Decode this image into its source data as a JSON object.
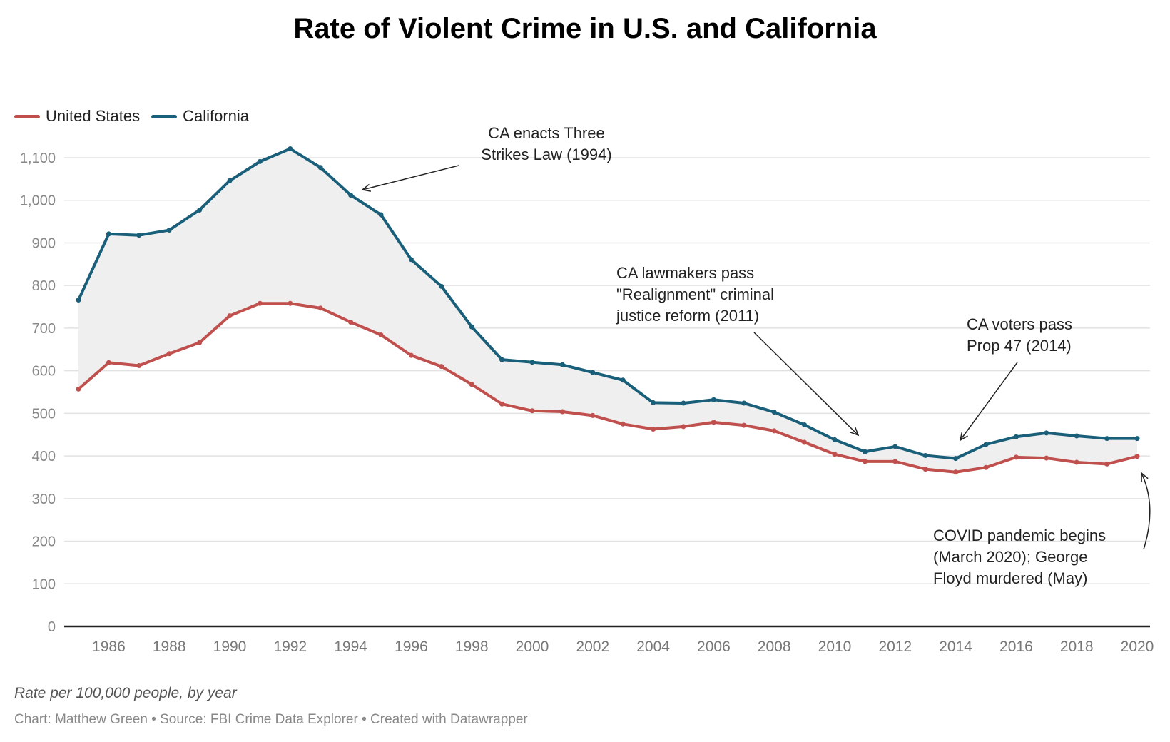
{
  "chart_data": {
    "type": "line",
    "title": "Rate of Violent Crime in U.S. and California",
    "subtitle_note": "Rate per 100,000 people, by year",
    "source": "Chart: Matthew Green • Source: FBI Crime Data Explorer • Created with Datawrapper",
    "ylim": [
      0,
      1100
    ],
    "yticks": [
      0,
      100,
      200,
      300,
      400,
      500,
      600,
      700,
      800,
      900,
      1000,
      1100
    ],
    "ytick_labels": [
      "0",
      "100",
      "200",
      "300",
      "400",
      "500",
      "600",
      "700",
      "800",
      "900",
      "1,000",
      "1,100"
    ],
    "xticks": [
      1986,
      1988,
      1990,
      1992,
      1994,
      1996,
      1998,
      2000,
      2002,
      2004,
      2006,
      2008,
      2010,
      2012,
      2014,
      2016,
      2018,
      2020
    ],
    "x": [
      1985,
      1986,
      1987,
      1988,
      1989,
      1990,
      1991,
      1992,
      1993,
      1994,
      1995,
      1996,
      1997,
      1998,
      1999,
      2000,
      2001,
      2002,
      2003,
      2004,
      2005,
      2006,
      2007,
      2008,
      2009,
      2010,
      2011,
      2012,
      2013,
      2014,
      2015,
      2016,
      2017,
      2018,
      2019,
      2020
    ],
    "series": [
      {
        "name": "United States",
        "color": "#c0504d",
        "values": [
          557,
          619,
          612,
          640,
          666,
          729,
          758,
          758,
          747,
          714,
          684,
          636,
          610,
          568,
          522,
          506,
          504,
          495,
          475,
          463,
          469,
          479,
          472,
          459,
          432,
          404,
          387,
          387,
          369,
          362,
          373,
          397,
          395,
          385,
          381,
          399
        ]
      },
      {
        "name": "California",
        "color": "#1a5f7a",
        "values": [
          766,
          921,
          918,
          930,
          977,
          1046,
          1091,
          1121,
          1077,
          1012,
          966,
          861,
          798,
          703,
          626,
          620,
          614,
          596,
          578,
          525,
          524,
          532,
          524,
          503,
          473,
          438,
          410,
          422,
          401,
          394,
          427,
          445,
          454,
          447,
          441,
          441
        ]
      }
    ],
    "annotations": [
      {
        "lines": [
          "CA enacts Three",
          "Strikes Law (1994)"
        ]
      },
      {
        "lines": [
          "CA lawmakers pass",
          "\"Realignment\" criminal",
          "justice reform (2011)"
        ]
      },
      {
        "lines": [
          "CA voters pass",
          "Prop 47 (2014)"
        ]
      },
      {
        "lines": [
          "COVID pandemic begins",
          "(March 2020); George",
          "Floyd murdered (May)"
        ]
      }
    ]
  }
}
